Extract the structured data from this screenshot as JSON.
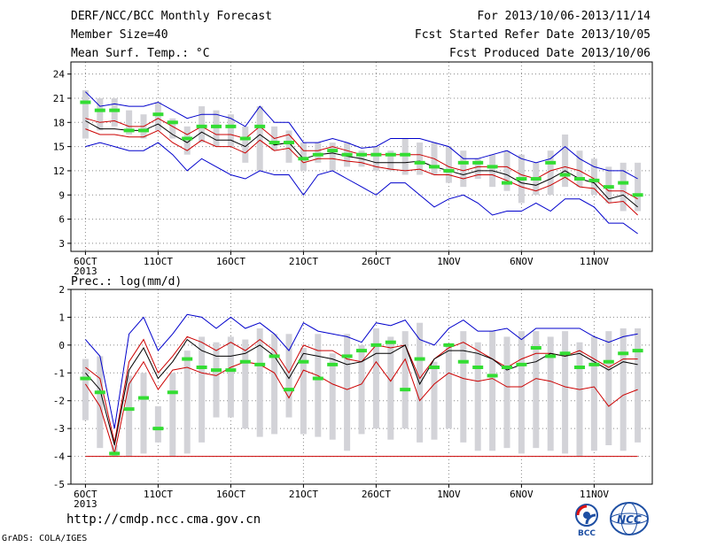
{
  "header": {
    "title": "DERF/NCC/BCC Monthly Forecast",
    "member_size": "Member Size=40",
    "variable": "Mean Surf. Temp.: °C",
    "period": "For 2013/10/06-2013/11/14",
    "fcst_started": "Fcst Started Refer Date 2013/10/05",
    "fcst_produced": "Fcst Produced Date 2013/10/06"
  },
  "footer": {
    "url": "http://cmdp.ncc.cma.gov.cn",
    "credit": "GrADS: COLA/IGES",
    "logo_bcc": "BCC",
    "logo_ncc": "NCC"
  },
  "colors": {
    "background": "#ffffff",
    "box": "#d3d3d8",
    "ensemble_max_min": "#0000cc",
    "ensemble_mean": "#000000",
    "ensemble_spread": "#cc0000",
    "member_mode": "#33dd33",
    "grid": "#888888"
  },
  "chart_data": [
    {
      "type": "line",
      "title": "",
      "ylabel": "",
      "ylim": [
        2,
        25.5
      ],
      "yticks": [
        3,
        6,
        9,
        12,
        15,
        18,
        21,
        24
      ],
      "xlim": [
        0,
        40
      ],
      "xticks": [
        {
          "x": 1,
          "label": "6OCT",
          "sub": "2013"
        },
        {
          "x": 6,
          "label": "11OCT"
        },
        {
          "x": 11,
          "label": "16OCT"
        },
        {
          "x": 16,
          "label": "21OCT"
        },
        {
          "x": 21,
          "label": "26OCT"
        },
        {
          "x": 26,
          "label": "1NOV"
        },
        {
          "x": 31,
          "label": "6NOV"
        },
        {
          "x": 36,
          "label": "11NOV"
        }
      ],
      "grid": true,
      "x": [
        1,
        2,
        3,
        4,
        5,
        6,
        7,
        8,
        9,
        10,
        11,
        12,
        13,
        14,
        15,
        16,
        17,
        18,
        19,
        20,
        21,
        22,
        23,
        24,
        25,
        26,
        27,
        28,
        29,
        30,
        31,
        32,
        33,
        34,
        35,
        36,
        37,
        38,
        39
      ],
      "box_low": [
        16.0,
        17.0,
        17.5,
        16.5,
        16.0,
        17.0,
        16.0,
        14.0,
        15.5,
        15.0,
        15.0,
        13.0,
        12.0,
        14.5,
        13.0,
        12.0,
        13.0,
        12.0,
        12.5,
        12.5,
        12.0,
        12.0,
        11.5,
        11.5,
        11.5,
        10.5,
        10.0,
        11.0,
        10.0,
        9.5,
        8.0,
        9.0,
        9.0,
        10.0,
        10.0,
        9.0,
        8.0,
        7.0,
        7.0
      ],
      "box_high": [
        22.0,
        21.0,
        21.0,
        19.5,
        19.0,
        20.5,
        18.5,
        17.5,
        20.0,
        19.5,
        19.0,
        17.5,
        20.0,
        17.5,
        17.0,
        15.5,
        15.5,
        15.5,
        15.5,
        14.5,
        15.0,
        14.5,
        16.0,
        15.5,
        15.5,
        15.0,
        14.5,
        13.5,
        14.0,
        14.5,
        14.0,
        13.0,
        14.5,
        16.5,
        14.5,
        13.5,
        12.5,
        13.0,
        13.0
      ],
      "series": [
        {
          "name": "",
          "role": "max",
          "values": [
            21.8,
            20.0,
            20.3,
            20.0,
            20.0,
            20.5,
            19.5,
            18.5,
            19.0,
            19.0,
            18.5,
            17.5,
            20.0,
            18.0,
            18.0,
            15.5,
            15.5,
            16.0,
            15.5,
            14.8,
            15.0,
            16.0,
            16.0,
            16.0,
            15.5,
            15.0,
            13.5,
            13.5,
            14.0,
            14.5,
            13.5,
            13.0,
            13.5,
            15.0,
            13.5,
            12.5,
            12.0,
            12.0,
            11.0
          ]
        },
        {
          "name": "",
          "role": "upper",
          "values": [
            18.5,
            18.0,
            18.2,
            17.5,
            17.5,
            18.5,
            17.5,
            16.5,
            17.5,
            16.5,
            16.5,
            16.0,
            17.5,
            16.0,
            16.5,
            14.5,
            14.5,
            15.0,
            14.5,
            14.0,
            14.0,
            14.0,
            14.0,
            14.0,
            13.5,
            12.5,
            12.0,
            12.5,
            12.5,
            12.5,
            11.5,
            11.0,
            12.0,
            12.5,
            12.0,
            11.0,
            9.5,
            9.5,
            8.5
          ]
        },
        {
          "name": "",
          "role": "mean",
          "values": [
            18.2,
            17.2,
            17.2,
            17.0,
            17.0,
            17.8,
            16.5,
            15.5,
            16.8,
            15.8,
            15.8,
            15.0,
            16.5,
            15.2,
            15.5,
            13.5,
            14.0,
            14.2,
            13.8,
            13.5,
            13.0,
            13.0,
            13.0,
            13.2,
            12.5,
            12.0,
            11.5,
            12.0,
            12.0,
            11.5,
            10.5,
            10.2,
            11.0,
            12.0,
            11.0,
            10.5,
            8.5,
            9.0,
            7.5
          ]
        },
        {
          "name": "",
          "role": "lower",
          "values": [
            17.2,
            16.5,
            16.5,
            16.2,
            16.2,
            17.0,
            15.5,
            14.5,
            15.8,
            15.0,
            15.0,
            14.2,
            15.8,
            14.5,
            14.8,
            13.0,
            13.5,
            13.5,
            13.2,
            13.0,
            12.5,
            12.2,
            12.0,
            12.2,
            11.5,
            11.5,
            11.0,
            11.5,
            11.5,
            10.8,
            10.0,
            9.5,
            10.2,
            11.2,
            10.0,
            9.8,
            8.0,
            8.2,
            6.5
          ]
        },
        {
          "name": "",
          "role": "min",
          "values": [
            15.0,
            15.5,
            15.0,
            14.5,
            14.5,
            15.5,
            14.0,
            12.0,
            13.5,
            12.5,
            11.5,
            11.0,
            12.0,
            11.5,
            11.5,
            9.0,
            11.5,
            12.0,
            11.0,
            10.0,
            9.0,
            10.5,
            10.5,
            9.0,
            7.5,
            8.5,
            9.0,
            8.0,
            6.5,
            7.0,
            7.0,
            8.0,
            7.0,
            8.5,
            8.5,
            7.5,
            5.5,
            5.5,
            4.2
          ]
        },
        {
          "name": "",
          "role": "mode",
          "values": [
            20.5,
            19.5,
            19.5,
            17.0,
            17.0,
            19.0,
            18.0,
            16.0,
            17.5,
            17.5,
            17.5,
            16.0,
            17.5,
            15.5,
            15.5,
            13.5,
            14.0,
            14.5,
            14.0,
            14.0,
            14.0,
            14.0,
            14.0,
            13.0,
            12.5,
            12.0,
            13.0,
            13.0,
            12.5,
            10.5,
            11.0,
            11.0,
            13.0,
            11.5,
            11.0,
            10.8,
            10.0,
            10.5,
            9.0
          ]
        }
      ]
    },
    {
      "type": "line",
      "title": "Prec.: log(mm/d)",
      "ylabel": "",
      "ylim": [
        -5,
        2
      ],
      "yticks": [
        -5,
        -4,
        -3,
        -2,
        -1,
        0,
        1,
        2
      ],
      "xlim": [
        0,
        40
      ],
      "xticks": [
        {
          "x": 1,
          "label": "6OCT",
          "sub": "2013"
        },
        {
          "x": 6,
          "label": "11OCT"
        },
        {
          "x": 11,
          "label": "16OCT"
        },
        {
          "x": 16,
          "label": "21OCT"
        },
        {
          "x": 21,
          "label": "26OCT"
        },
        {
          "x": 26,
          "label": "1NOV"
        },
        {
          "x": 31,
          "label": "6NOV"
        },
        {
          "x": 36,
          "label": "11NOV"
        }
      ],
      "grid": true,
      "x": [
        1,
        2,
        3,
        4,
        5,
        6,
        7,
        8,
        9,
        10,
        11,
        12,
        13,
        14,
        15,
        16,
        17,
        18,
        19,
        20,
        21,
        22,
        23,
        24,
        25,
        26,
        27,
        28,
        29,
        30,
        31,
        32,
        33,
        34,
        35,
        36,
        37,
        38,
        39
      ],
      "box_low": [
        -2.7,
        -3.7,
        -4.0,
        -4.0,
        -3.9,
        -3.5,
        -4.0,
        -3.9,
        -3.5,
        -2.6,
        -2.6,
        -3.0,
        -3.3,
        -3.2,
        -2.6,
        -3.2,
        -3.3,
        -3.4,
        -3.8,
        -3.2,
        -3.0,
        -3.4,
        -3.0,
        -3.5,
        -3.4,
        -3.0,
        -3.5,
        -3.8,
        -3.8,
        -3.7,
        -3.9,
        -3.7,
        -3.8,
        -3.9,
        -4.0,
        -3.8,
        -3.6,
        -3.8,
        -3.5
      ],
      "box_high": [
        -0.5,
        -0.4,
        -3.6,
        -1.1,
        -1.0,
        -2.2,
        -1.0,
        -0.2,
        0.3,
        0.1,
        0.3,
        0.2,
        0.6,
        0.4,
        0.4,
        -0.1,
        0.4,
        -0.3,
        0.4,
        0.0,
        0.6,
        0.3,
        0.5,
        0.8,
        -0.6,
        0.0,
        0.5,
        0.1,
        0.5,
        0.3,
        0.5,
        0.5,
        0.3,
        0.5,
        0.1,
        0.3,
        0.5,
        0.6,
        0.6
      ],
      "series": [
        {
          "name": "",
          "role": "max",
          "values": [
            0.2,
            -0.4,
            -3.0,
            0.4,
            1.0,
            -0.2,
            0.4,
            1.1,
            1.0,
            0.6,
            1.0,
            0.6,
            0.8,
            0.4,
            -0.2,
            0.8,
            0.5,
            0.4,
            0.3,
            0.1,
            0.8,
            0.7,
            0.9,
            0.2,
            0.0,
            0.6,
            0.9,
            0.5,
            0.5,
            0.6,
            0.2,
            0.6,
            0.6,
            0.6,
            0.6,
            0.3,
            0.1,
            0.3,
            0.4
          ]
        },
        {
          "name": "",
          "role": "upper",
          "values": [
            -0.8,
            -1.2,
            -3.5,
            -0.6,
            0.2,
            -1.0,
            -0.4,
            0.3,
            0.1,
            -0.2,
            0.1,
            -0.2,
            0.2,
            -0.2,
            -1.0,
            0.0,
            -0.2,
            -0.2,
            -0.5,
            -0.6,
            0.0,
            -0.1,
            0.0,
            -1.2,
            -0.5,
            -0.1,
            0.1,
            -0.2,
            -0.5,
            -0.8,
            -0.5,
            -0.3,
            -0.3,
            -0.4,
            -0.2,
            -0.5,
            -0.8,
            -0.5,
            -0.5
          ]
        },
        {
          "name": "",
          "role": "mean",
          "values": [
            -1.0,
            -1.6,
            -3.6,
            -0.9,
            -0.1,
            -1.2,
            -0.6,
            0.2,
            -0.2,
            -0.4,
            -0.4,
            -0.3,
            0.0,
            -0.4,
            -1.2,
            -0.3,
            -0.4,
            -0.5,
            -0.7,
            -0.6,
            -0.3,
            -0.3,
            0.0,
            -1.4,
            -0.5,
            -0.2,
            -0.2,
            -0.3,
            -0.5,
            -0.9,
            -0.7,
            -0.6,
            -0.3,
            -0.4,
            -0.3,
            -0.6,
            -0.9,
            -0.6,
            -0.7
          ]
        },
        {
          "name": "",
          "role": "lower",
          "values": [
            -1.4,
            -2.2,
            -3.9,
            -1.4,
            -0.6,
            -1.6,
            -0.9,
            -0.8,
            -1.0,
            -1.1,
            -0.8,
            -0.6,
            -0.7,
            -1.0,
            -1.9,
            -0.9,
            -1.1,
            -1.4,
            -1.6,
            -1.4,
            -0.6,
            -1.3,
            -0.5,
            -2.0,
            -1.4,
            -1.0,
            -1.2,
            -1.3,
            -1.2,
            -1.5,
            -1.5,
            -1.2,
            -1.3,
            -1.5,
            -1.6,
            -1.5,
            -2.2,
            -1.8,
            -1.6
          ]
        },
        {
          "name": "",
          "role": "mode",
          "values": [
            -1.2,
            -1.7,
            -3.9,
            -2.3,
            -1.9,
            -3.0,
            -1.7,
            -0.5,
            -0.8,
            -0.9,
            -0.9,
            -0.6,
            -0.7,
            -0.4,
            -1.6,
            -0.6,
            -1.2,
            -0.7,
            -0.4,
            -0.2,
            0.0,
            0.1,
            -1.6,
            -0.5,
            -0.8,
            0.0,
            -0.6,
            -0.8,
            -1.1,
            -0.8,
            -0.7,
            -0.1,
            -0.4,
            -0.3,
            -0.8,
            -0.7,
            -0.6,
            -0.3,
            -0.2
          ]
        },
        {
          "name": "",
          "role": "floor",
          "values": [
            -4,
            -4,
            -4,
            -4,
            -4,
            -4,
            -4,
            -4,
            -4,
            -4,
            -4,
            -4,
            -4,
            -4,
            -4,
            -4,
            -4,
            -4,
            -4,
            -4,
            -4,
            -4,
            -4,
            -4,
            -4,
            -4,
            -4,
            -4,
            -4,
            -4,
            -4,
            -4,
            -4,
            -4,
            -4,
            -4,
            -4,
            -4,
            -4
          ]
        }
      ]
    }
  ]
}
